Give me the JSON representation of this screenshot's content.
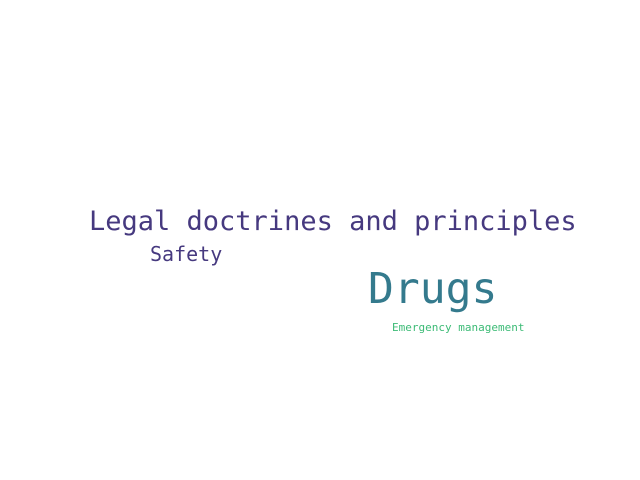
{
  "words": [
    {
      "text": "Legal doctrines and principles",
      "color": "#46397f"
    },
    {
      "text": "Safety",
      "color": "#46397f"
    },
    {
      "text": "Drugs",
      "color": "#347a8d"
    },
    {
      "text": "Emergency management",
      "color": "#3cbb76"
    }
  ]
}
